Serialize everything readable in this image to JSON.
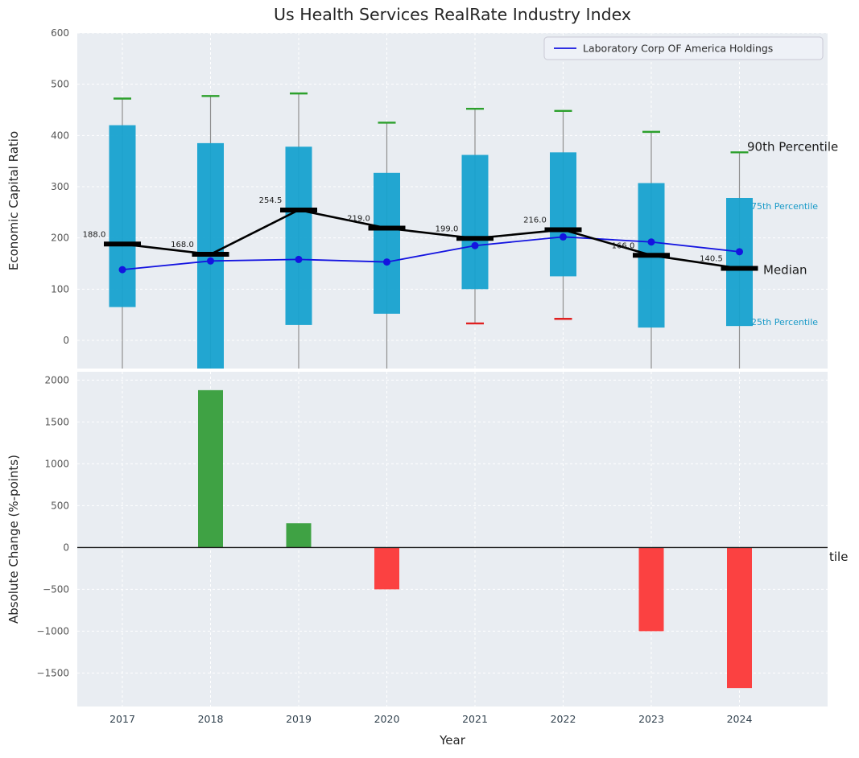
{
  "figure": {
    "title": "Us Health Services RealRate Industry Index",
    "xlabel": "Year",
    "background": "#ffffff",
    "panel_background": "#e9edf2"
  },
  "legend": {
    "label": "Laboratory Corp OF America Holdings",
    "line_color": "#1414e0"
  },
  "chart_data": [
    {
      "type": "box-whisker-with-line",
      "panel": "top",
      "title": "Us Health Services RealRate Industry Index",
      "ylabel": "Economic Capital Ratio",
      "ylim": [
        -55,
        600
      ],
      "yticks": [
        0,
        100,
        200,
        300,
        400,
        500,
        600
      ],
      "grid": true,
      "categories": [
        "2017",
        "2018",
        "2019",
        "2020",
        "2021",
        "2022",
        "2023",
        "2024"
      ],
      "box_color": "#17a2cf",
      "whisker_color": "#909090",
      "cap_high_color": "#2ca02c",
      "cap_low_color": "#e02020",
      "median_color": "#000000",
      "company_line_color": "#1414e0",
      "series": {
        "p25": [
          65,
          -55,
          30,
          52,
          100,
          125,
          25,
          28
        ],
        "p75": [
          420,
          385,
          378,
          327,
          362,
          367,
          307,
          278
        ],
        "median": [
          188.0,
          168.0,
          254.5,
          219.0,
          199.0,
          216.0,
          166.0,
          140.5
        ],
        "p90": [
          472,
          477,
          482,
          425,
          452,
          448,
          407,
          367
        ],
        "p10": [
          null,
          null,
          null,
          null,
          33,
          42,
          null,
          null
        ],
        "company": [
          138,
          155,
          158,
          153,
          185,
          202,
          192,
          173
        ]
      },
      "median_labels": [
        "188.0",
        "168.0",
        "254.5",
        "219.0",
        "199.0",
        "216.0",
        "166.0",
        "140.5"
      ],
      "right_labels": [
        {
          "text": "90th Percentile",
          "value": 378,
          "color": "#1a1a1a",
          "size": 15,
          "x": 928
        },
        {
          "text": "75th Percentile",
          "value": 262,
          "color": "#1799c7",
          "size": 11,
          "x": 933
        },
        {
          "text": "Median",
          "value": 138,
          "color": "#1a1a1a",
          "size": 15,
          "x": 948
        },
        {
          "text": "25th Percentile",
          "value": 36,
          "color": "#1799c7",
          "size": 11,
          "x": 933
        }
      ],
      "legend": {
        "label": "Laboratory Corp OF America Holdings",
        "position": "upper right"
      }
    },
    {
      "type": "bar",
      "panel": "bottom",
      "ylabel": "Absolute Change (%-points)",
      "xlabel": "Year",
      "ylim": [
        -1900,
        2100
      ],
      "yticks": [
        2000,
        1500,
        1000,
        500,
        0,
        -500,
        -1000,
        -1500
      ],
      "grid": true,
      "zero_line": true,
      "categories": [
        "2017",
        "2018",
        "2019",
        "2020",
        "2021",
        "2022",
        "2023",
        "2024"
      ],
      "values": [
        0,
        1880,
        290,
        -500,
        0,
        0,
        -1000,
        -1680
      ],
      "positive_color": "#3fa244",
      "negative_color": "#fb4141",
      "right_labels": [
        {
          "text": "tile",
          "value": -110,
          "color": "#1a1a1a",
          "size": 15,
          "x": 1030
        }
      ]
    }
  ]
}
